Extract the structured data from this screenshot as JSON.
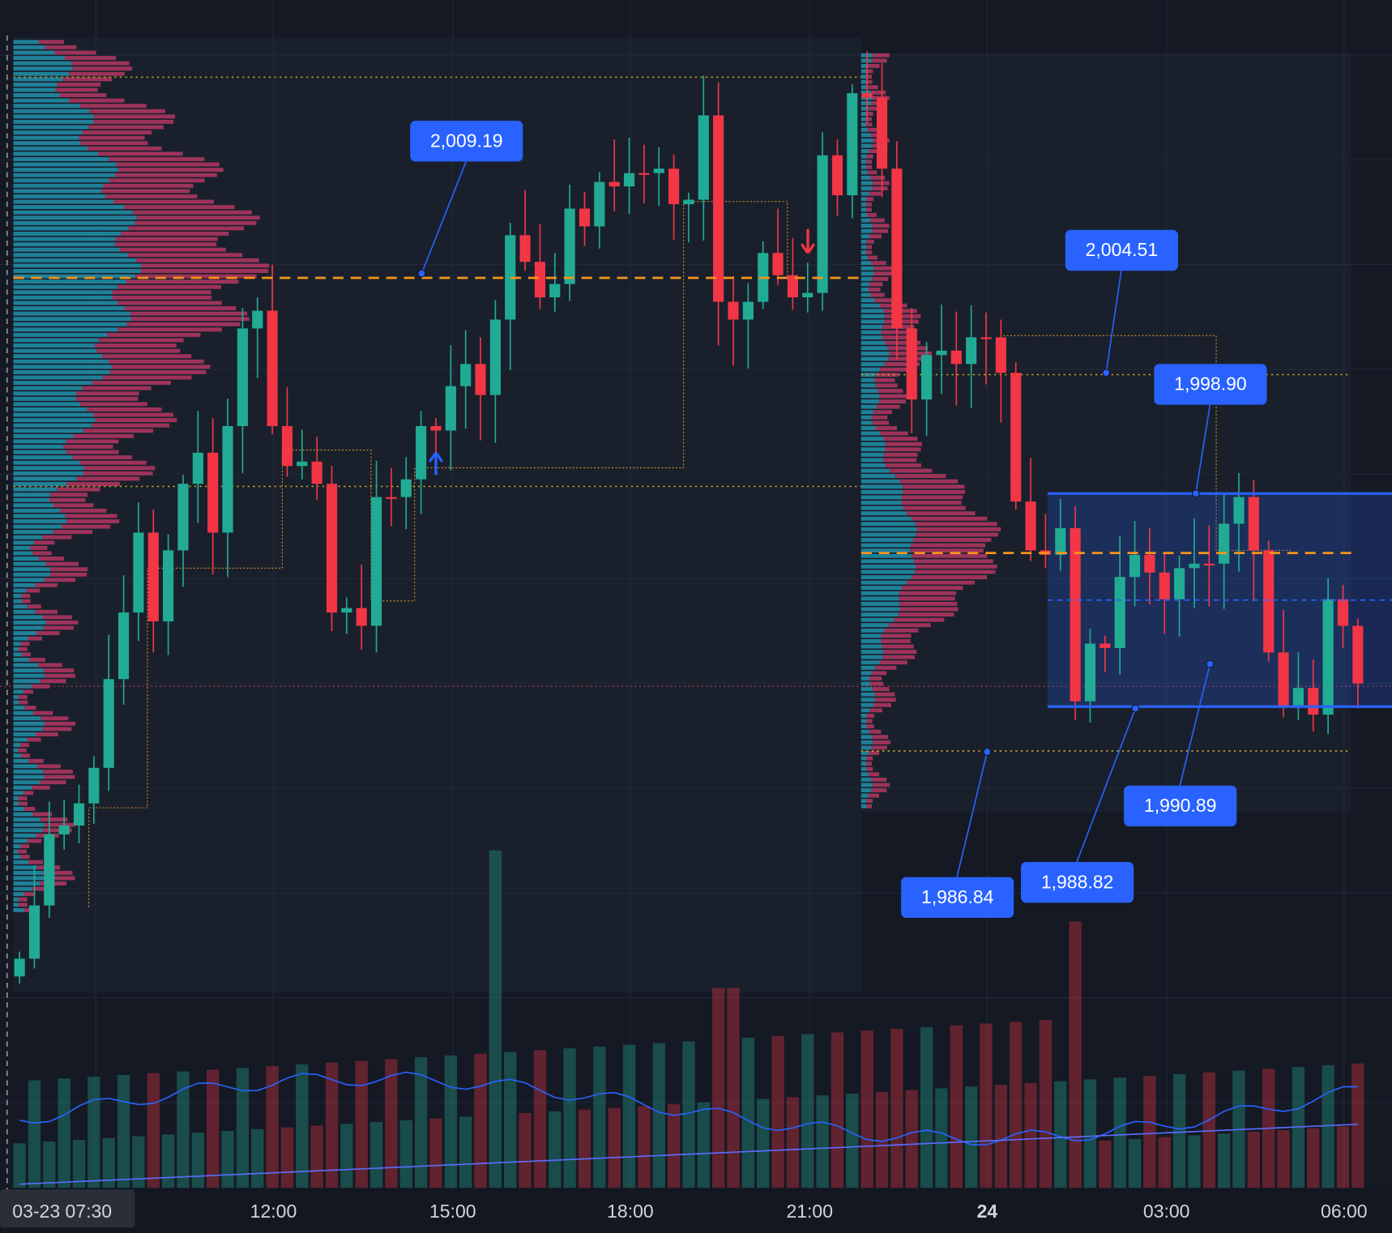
{
  "price_labels": [
    "2,009.19",
    "2,004.51",
    "1,998.90",
    "1,990.89",
    "1,988.82",
    "1,986.84"
  ],
  "time_axis": {
    "labels": [
      "03-23  07:30",
      "12:00",
      "15:00",
      "18:00",
      "21:00",
      "24",
      "03:00",
      "06:00"
    ]
  }
}
